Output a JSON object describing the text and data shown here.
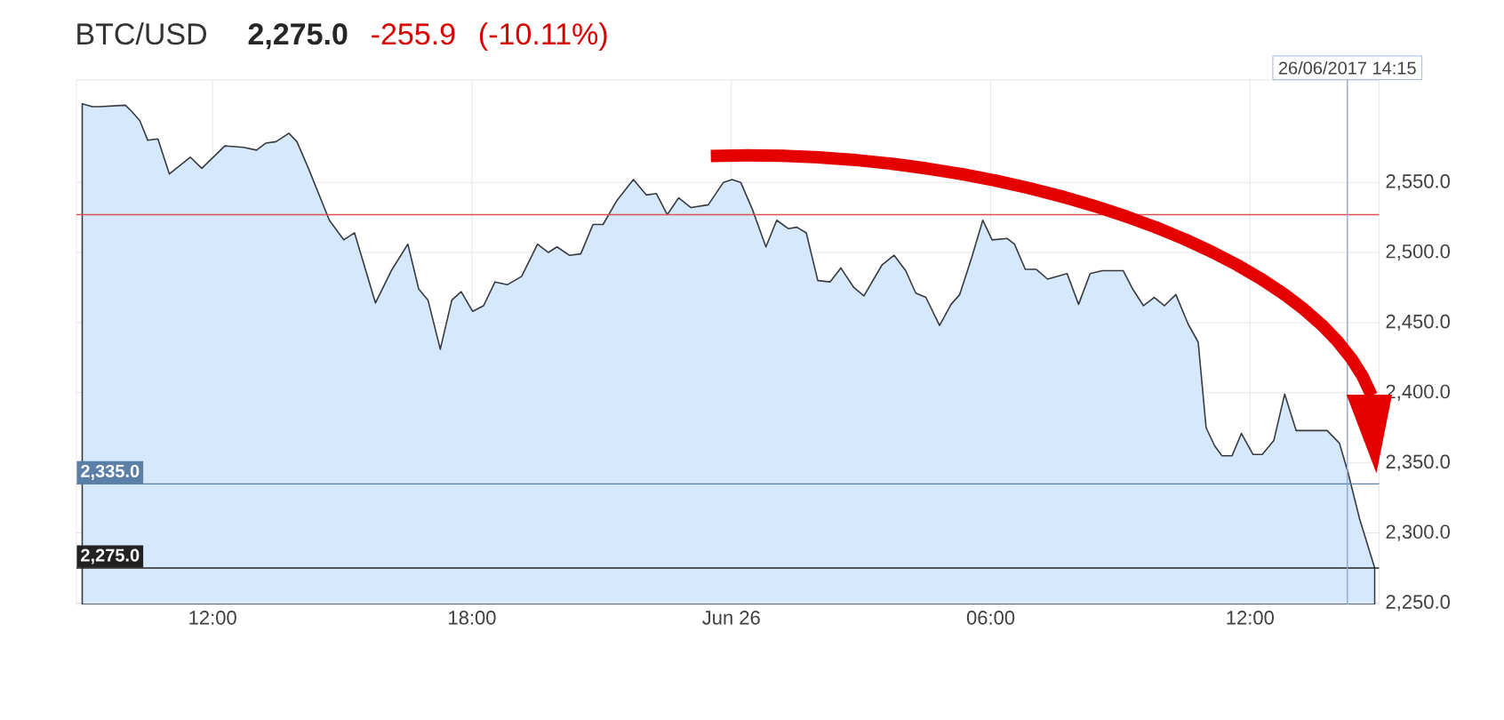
{
  "chart_data": {
    "type": "area",
    "title": "BTC/USD",
    "annotations": [
      "2,275.0",
      "-255.9",
      "(-10.11%)"
    ],
    "series": [
      {
        "color": "#d6e8fb",
        "x": [
          "2017-06-25T08:59",
          "2017-06-25T09:13",
          "2017-06-25T09:22",
          "2017-06-25T09:59",
          "2017-06-25T10:07",
          "2017-06-25T10:19",
          "2017-06-25T10:30",
          "2017-06-25T10:44",
          "2017-06-25T11:00",
          "2017-06-25T11:29",
          "2017-06-25T11:45",
          "2017-06-25T12:17",
          "2017-06-25T12:43",
          "2017-06-25T13:01",
          "2017-06-25T13:14",
          "2017-06-25T13:28",
          "2017-06-25T13:46",
          "2017-06-25T13:57",
          "2017-06-25T14:13",
          "2017-06-25T14:42",
          "2017-06-25T15:02",
          "2017-06-25T15:17",
          "2017-06-25T15:46",
          "2017-06-25T16:08",
          "2017-06-25T16:31",
          "2017-06-25T16:46",
          "2017-06-25T16:59",
          "2017-06-25T17:16",
          "2017-06-25T17:32",
          "2017-06-25T17:45",
          "2017-06-25T18:01",
          "2017-06-25T18:16",
          "2017-06-25T18:32",
          "2017-06-25T18:49",
          "2017-06-25T19:09",
          "2017-06-25T19:31",
          "2017-06-25T19:46",
          "2017-06-25T19:58",
          "2017-06-25T20:15",
          "2017-06-25T20:31",
          "2017-06-25T20:48",
          "2017-06-25T21:02",
          "2017-06-25T21:21",
          "2017-06-25T21:44",
          "2017-06-25T22:02",
          "2017-06-25T22:16",
          "2017-06-25T22:31",
          "2017-06-25T22:47",
          "2017-06-25T23:04",
          "2017-06-25T23:28",
          "2017-06-25T23:49",
          "2017-06-26T00:01",
          "2017-06-26T00:13",
          "2017-06-26T00:29",
          "2017-06-26T00:48",
          "2017-06-26T01:03",
          "2017-06-26T01:19",
          "2017-06-26T01:31",
          "2017-06-26T01:44",
          "2017-06-26T02:00",
          "2017-06-26T02:17",
          "2017-06-26T02:32",
          "2017-06-26T02:50",
          "2017-06-26T03:04",
          "2017-06-26T03:29",
          "2017-06-26T03:46",
          "2017-06-26T04:02",
          "2017-06-26T04:16",
          "2017-06-26T04:30",
          "2017-06-26T04:49",
          "2017-06-26T05:05",
          "2017-06-26T05:17",
          "2017-06-26T05:34",
          "2017-06-26T05:49",
          "2017-06-26T06:02",
          "2017-06-26T06:23",
          "2017-06-26T06:33",
          "2017-06-26T06:48",
          "2017-06-26T07:03",
          "2017-06-26T07:19",
          "2017-06-26T07:46",
          "2017-06-26T08:02",
          "2017-06-26T08:18",
          "2017-06-26T08:35",
          "2017-06-26T09:04",
          "2017-06-26T09:17",
          "2017-06-26T09:32",
          "2017-06-26T09:47",
          "2017-06-26T10:01",
          "2017-06-26T10:17",
          "2017-06-26T10:34",
          "2017-06-26T10:48",
          "2017-06-26T10:59",
          "2017-06-26T11:11",
          "2017-06-26T11:21",
          "2017-06-26T11:35",
          "2017-06-26T11:48",
          "2017-06-26T12:04",
          "2017-06-26T12:17",
          "2017-06-26T12:33",
          "2017-06-26T12:48",
          "2017-06-26T13:04",
          "2017-06-26T13:47",
          "2017-06-26T14:04",
          "2017-06-26T14:16",
          "2017-06-26T14:32",
          "2017-06-26T14:53"
        ],
        "values": [
          2606,
          2604,
          2604,
          2605,
          2601,
          2594,
          2580,
          2581,
          2556,
          2568,
          2560,
          2576,
          2575,
          2573,
          2578,
          2579,
          2585,
          2579,
          2560,
          2523,
          2509,
          2514,
          2464,
          2487,
          2506,
          2474,
          2466,
          2431,
          2466,
          2472,
          2458,
          2462,
          2479,
          2477,
          2483,
          2506,
          2500,
          2504,
          2498,
          2499,
          2520,
          2520,
          2537,
          2552,
          2541,
          2542,
          2527,
          2539,
          2532,
          2534,
          2550,
          2552,
          2550,
          2531,
          2504,
          2523,
          2517,
          2518,
          2514,
          2480,
          2479,
          2489,
          2475,
          2469,
          2491,
          2498,
          2487,
          2471,
          2468,
          2448,
          2463,
          2470,
          2497,
          2523,
          2509,
          2510,
          2506,
          2488,
          2488,
          2481,
          2485,
          2463,
          2485,
          2487,
          2487,
          2474,
          2462,
          2468,
          2462,
          2470,
          2449,
          2436,
          2375,
          2362,
          2355,
          2355,
          2371,
          2356,
          2356,
          2366,
          2399,
          2373,
          2373,
          2364,
          2343,
          2310,
          2275
        ]
      }
    ],
    "xlim": [
      "2017-06-25T08:51",
      "2017-06-26T14:59"
    ],
    "ylim": [
      2249,
      2623
    ],
    "xticks": [
      {
        "value": "2017-06-25T12:00",
        "label": "12:00"
      },
      {
        "value": "2017-06-25T18:00",
        "label": "18:00"
      },
      {
        "value": "2017-06-26T00:00",
        "label": "Jun 26"
      },
      {
        "value": "2017-06-26T06:00",
        "label": "06:00"
      },
      {
        "value": "2017-06-26T12:00",
        "label": "12:00"
      }
    ],
    "yticks": [
      {
        "value": 2250,
        "label": "2,250.0"
      },
      {
        "value": 2300,
        "label": "2,300.0"
      },
      {
        "value": 2350,
        "label": "2,350.0"
      },
      {
        "value": 2400,
        "label": "2,400.0"
      },
      {
        "value": 2450,
        "label": "2,450.0"
      },
      {
        "value": 2500,
        "label": "2,500.0"
      },
      {
        "value": 2550,
        "label": "2,550.0"
      }
    ],
    "grid": true,
    "ref_lines": [
      {
        "axis": "y",
        "value": 2527,
        "color": "#d9534f"
      },
      {
        "axis": "y",
        "value": 2335,
        "label": "2,335.0",
        "color": "#5b7fa6"
      },
      {
        "axis": "y",
        "value": 2275,
        "label": "2,275.0",
        "color": "#222222"
      },
      {
        "axis": "x",
        "value": "2017-06-26T14:15",
        "label": "26/06/2017 14:15",
        "color": "#8fa6d8"
      }
    ]
  }
}
